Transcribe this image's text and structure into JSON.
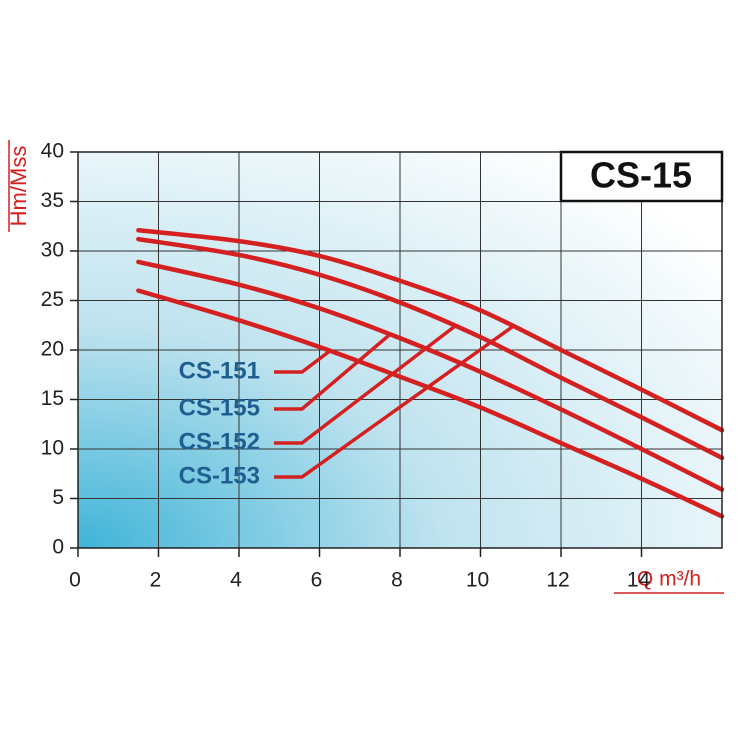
{
  "chart_data": {
    "type": "line",
    "title": "CS-15",
    "x_label": "Q m³/h",
    "y_label": "Hm/Mss",
    "x": [
      1.5,
      4,
      6,
      8,
      10,
      12,
      14,
      16
    ],
    "series": [
      {
        "name": "CS-151",
        "color": "#d42020",
        "values": [
          26,
          23,
          20.3,
          17.3,
          14.2,
          10.6,
          7,
          3.2
        ]
      },
      {
        "name": "CS-155",
        "color": "#d42020",
        "values": [
          28.9,
          26.6,
          24.2,
          21.2,
          17.8,
          14,
          10,
          5.9
        ]
      },
      {
        "name": "CS-152",
        "color": "#d42020",
        "values": [
          31.2,
          29.6,
          27.6,
          24.8,
          21.3,
          17.2,
          13.2,
          9.1
        ]
      },
      {
        "name": "CS-153",
        "color": "#d42020",
        "values": [
          32.1,
          31,
          29.5,
          27,
          24,
          20,
          16,
          11.9
        ]
      }
    ],
    "xlim": [
      0,
      16
    ],
    "xticks": [
      0,
      2,
      4,
      6,
      8,
      10,
      12,
      14
    ],
    "ylim": [
      0,
      40
    ],
    "yticks": [
      0,
      5,
      10,
      15,
      20,
      25,
      30,
      35,
      40
    ],
    "grid": true
  }
}
